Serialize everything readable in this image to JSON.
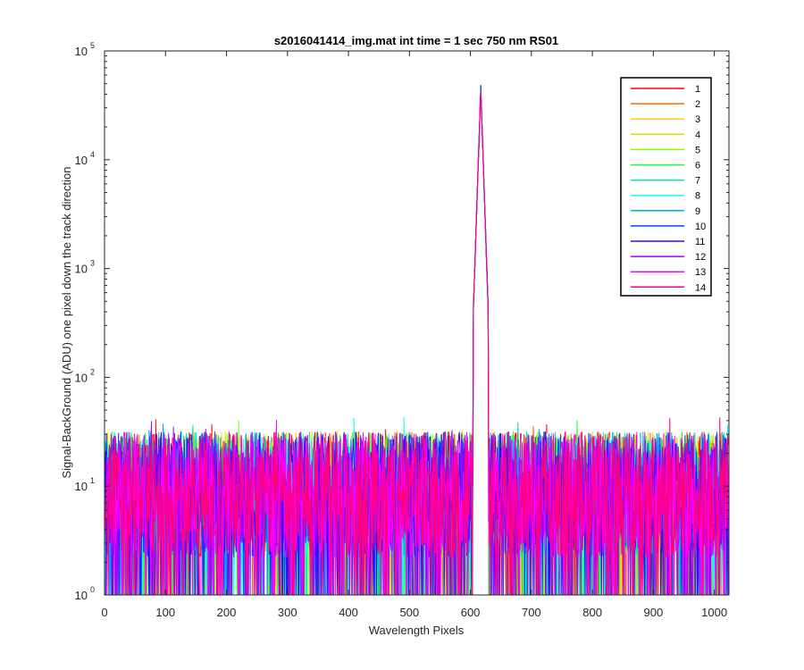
{
  "chart_data": {
    "type": "line",
    "title": "s2016041414_img.mat int time = 1 sec  750 nm RS01",
    "xlabel": "Wavelength Pixels",
    "ylabel": "Signal-BackGround (ADU) one pixel down the track direction",
    "xlim": [
      0,
      1024
    ],
    "ylim": [
      1,
      100000
    ],
    "yscale": "log",
    "xticks": [
      0,
      100,
      200,
      300,
      400,
      500,
      600,
      700,
      800,
      900,
      1000
    ],
    "xtick_labels": [
      "0",
      "100",
      "200",
      "300",
      "400",
      "500",
      "600",
      "700",
      "800",
      "900",
      "1000"
    ],
    "yticks": [
      1,
      10,
      100,
      1000,
      10000,
      100000
    ],
    "ytick_exponents": [
      "0",
      "1",
      "2",
      "3",
      "4",
      "5"
    ],
    "ytick_base": "10",
    "grid": false,
    "legend_position": "top-right",
    "peak": {
      "x": 617,
      "y": 45000
    },
    "noise_floor": {
      "median_approx": 10,
      "min": 1,
      "max_approx": 60
    },
    "series": [
      {
        "name": "1",
        "color": "#ff0000"
      },
      {
        "name": "2",
        "color": "#ff6a00"
      },
      {
        "name": "3",
        "color": "#ffcc00"
      },
      {
        "name": "4",
        "color": "#c8e600"
      },
      {
        "name": "5",
        "color": "#80ff00"
      },
      {
        "name": "6",
        "color": "#1aff33"
      },
      {
        "name": "7",
        "color": "#00e699"
      },
      {
        "name": "8",
        "color": "#00ffff"
      },
      {
        "name": "9",
        "color": "#00a0ff"
      },
      {
        "name": "10",
        "color": "#0040ff"
      },
      {
        "name": "11",
        "color": "#4000ff"
      },
      {
        "name": "12",
        "color": "#a000ff"
      },
      {
        "name": "13",
        "color": "#ff00ff"
      },
      {
        "name": "14",
        "color": "#ff0080"
      }
    ]
  }
}
